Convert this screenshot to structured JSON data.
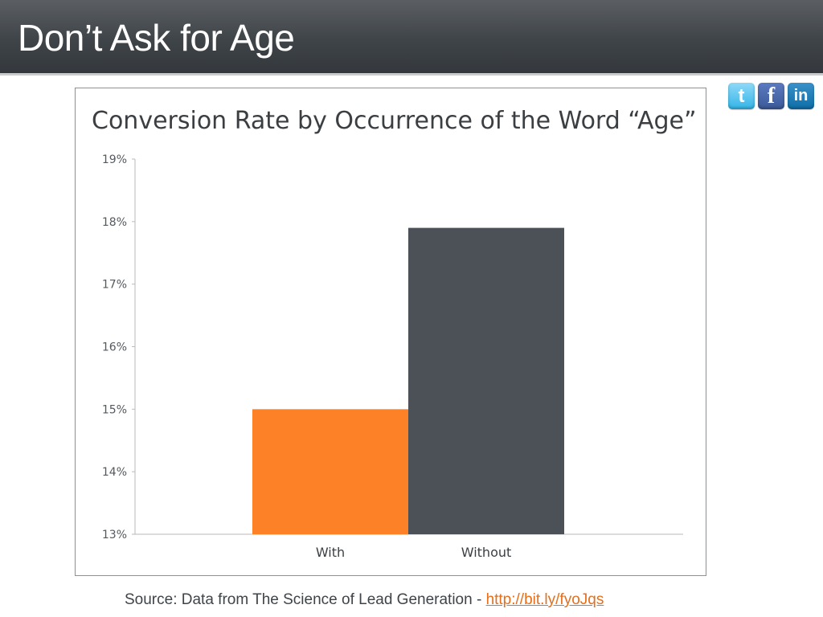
{
  "slide": {
    "title": "Don’t Ask for Age"
  },
  "social": {
    "twitter": {
      "label": "t",
      "icon": "twitter-icon",
      "color": "#33b5e8"
    },
    "facebook": {
      "label": "f",
      "icon": "facebook-icon",
      "color": "#3b5998"
    },
    "linkedin": {
      "label": "in",
      "icon": "linkedin-icon",
      "color": "#0e6ea8"
    }
  },
  "chart_data": {
    "type": "bar",
    "title": "Conversion Rate by Occurrence of the Word “Age”",
    "xlabel": "",
    "ylabel": "",
    "categories": [
      "With",
      "Without"
    ],
    "values": [
      15.0,
      17.9
    ],
    "ylim": [
      13,
      19
    ],
    "yticks": [
      19,
      18,
      17,
      16,
      15,
      14,
      13
    ],
    "ytick_suffix": "%",
    "bar_colors": [
      "#fd8126",
      "#4c5158"
    ],
    "grid": false,
    "legend": "none"
  },
  "source": {
    "prefix": "Source: Data from The Science of Lead Generation - ",
    "link_text": "http://bit.ly/fyoJqs",
    "link_color": "#e56f1a"
  }
}
